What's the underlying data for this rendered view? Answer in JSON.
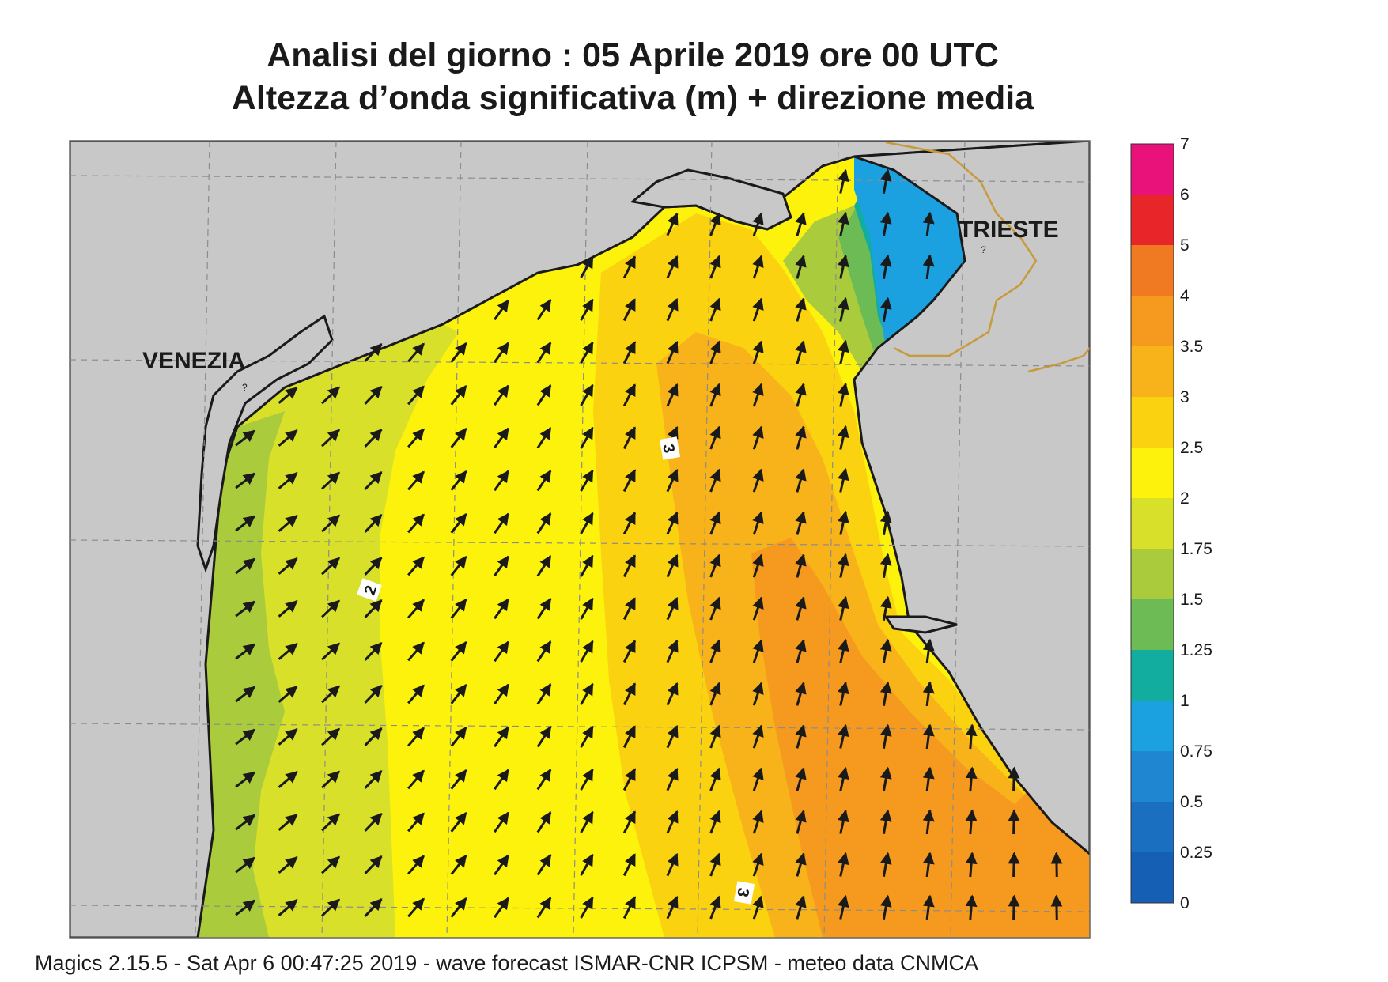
{
  "title": {
    "line1": "Analisi del giorno :  05   Aprile  2019   ore 00 UTC",
    "line2": "Altezza d’onda significativa (m) + direzione media"
  },
  "cities": {
    "venezia": "VENEZIA",
    "trieste": "TRIESTE"
  },
  "contour_labels": [
    "2",
    "3",
    "3"
  ],
  "legend": {
    "labels": [
      "7",
      "6",
      "5",
      "4",
      "3.5",
      "3",
      "2.5",
      "2",
      "1.75",
      "1.5",
      "1.25",
      "1",
      "0.75",
      "0.5",
      "0.25",
      "0"
    ],
    "colors": [
      "#e8127a",
      "#e8262a",
      "#ef7a22",
      "#f59a1e",
      "#f7b319",
      "#fbd20f",
      "#fcf20b",
      "#d9e02a",
      "#a9cb3c",
      "#6dbb55",
      "#13ad9f",
      "#1ca1e0",
      "#1f87d2",
      "#1a6fc1",
      "#1560b5"
    ]
  },
  "colors": {
    "land": "#c8c8c8",
    "coast": "#1a1a1a",
    "border": "#c89a3a",
    "arrow": "#1a1a1a",
    "grid": "#8c8c8c"
  },
  "footer": "Magics 2.15.5 - Sat Apr  6 00:47:25 2019 - wave forecast  ISMAR-CNR  ICPSM - meteo data   CNMCA"
}
